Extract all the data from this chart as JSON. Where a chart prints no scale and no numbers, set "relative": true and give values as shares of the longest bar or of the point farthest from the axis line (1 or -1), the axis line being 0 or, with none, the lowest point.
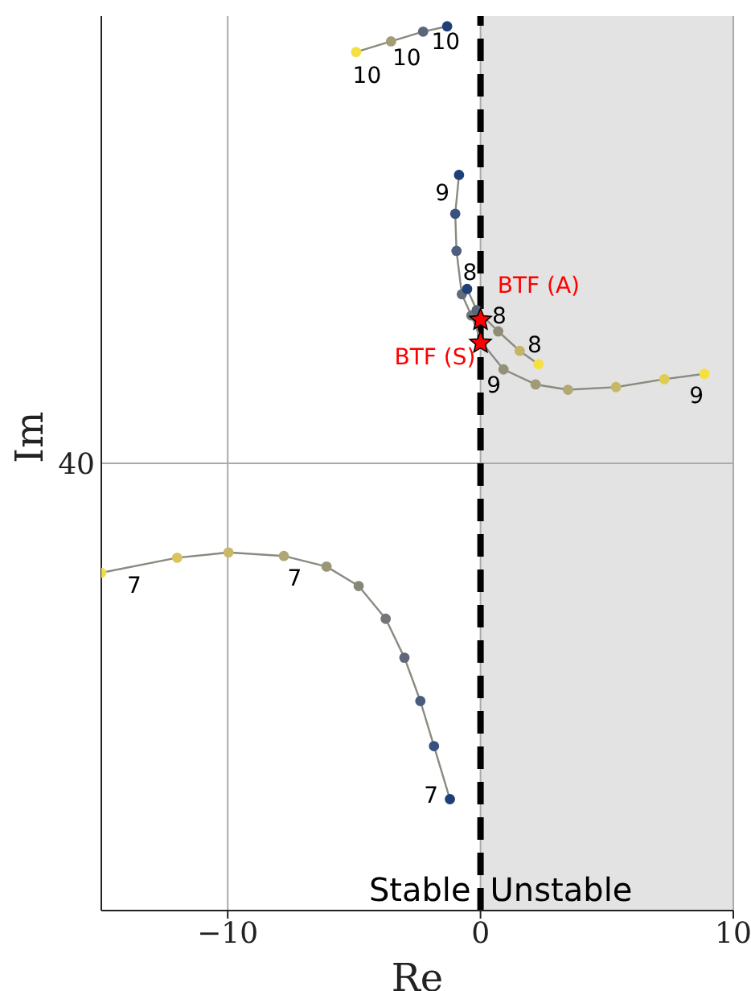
{
  "chart_data": {
    "type": "line",
    "xlabel": "Re",
    "ylabel": "Im",
    "xlim": [
      -15,
      10
    ],
    "xticks": [
      -10,
      0,
      10
    ],
    "relative": true,
    "grid": true,
    "marker": "circle",
    "line_style": "solid",
    "legend": false,
    "series": [
      {
        "color": "#8a8a80",
        "x": [
          -15,
          -12.0,
          -9.97,
          -7.78,
          -6.09,
          -4.82,
          -3.75,
          -3.01,
          -2.38,
          -1.84,
          -1.21
        ],
        "values": [
          0.382,
          0.399,
          0.405,
          0.401,
          0.389,
          0.367,
          0.33,
          0.286,
          0.237,
          0.186,
          0.126
        ],
        "colors": [
          "#f2dc45",
          "#d9c460",
          "#c9b86a",
          "#b0a774",
          "#9a9678",
          "#868679",
          "#737679",
          "#5e687a",
          "#4a5b7c",
          "#37507d",
          "#1f3f78"
        ]
      },
      {
        "color": "#8a8a80",
        "x": [
          -0.85,
          -1.0,
          -0.95,
          -0.74,
          -0.36,
          0.06,
          0.91,
          2.18,
          3.46,
          5.36,
          7.27,
          8.86
        ],
        "values": [
          0.832,
          0.788,
          0.746,
          0.697,
          0.673,
          0.642,
          0.612,
          0.595,
          0.589,
          0.592,
          0.601,
          0.607
        ],
        "colors": [
          "#1f3f78",
          "#3a507d",
          "#4e5e7c",
          "#626b7a",
          "#737679",
          "#828279",
          "#939078",
          "#a19a77",
          "#b2a872",
          "#c8b866",
          "#e0cc52",
          "#f5e042"
        ]
      },
      {
        "color": "#8a8a80",
        "x": [
          -0.53,
          -0.15,
          0.7,
          1.55,
          2.29
        ],
        "values": [
          0.703,
          0.679,
          0.655,
          0.633,
          0.618
        ],
        "colors": [
          "#1f3f78",
          "#5a6679",
          "#8e8c78",
          "#c4b468",
          "#f5e042"
        ]
      },
      {
        "color": "#8a8a80",
        "x": [
          -4.92,
          -3.54,
          -2.27,
          -1.32
        ],
        "values": [
          0.971,
          0.983,
          0.994,
          1
        ],
        "colors": [
          "#f5e042",
          "#a39d77",
          "#5a6679",
          "#1f3f78"
        ]
      },
      {
        "type": "scatter",
        "marker": "star",
        "color": "#ff0000",
        "x": [
          0,
          0
        ],
        "values": [
          0.668,
          0.642
        ]
      }
    ],
    "ref_lines": [
      {
        "axis": "x",
        "value": 0,
        "label": "Stable",
        "color": "#000000",
        "line_style": "dashed"
      }
    ],
    "bands": [
      {
        "axis": "x",
        "from": 0,
        "to": 10,
        "label": "Unstable",
        "color": "#e3e3e3"
      }
    ],
    "annotations": [
      "40",
      "BTF (A)",
      "BTF (S)",
      "10",
      "10",
      "10",
      "9",
      "8",
      "8",
      "8",
      "9",
      "9",
      "7",
      "7",
      "7"
    ]
  }
}
